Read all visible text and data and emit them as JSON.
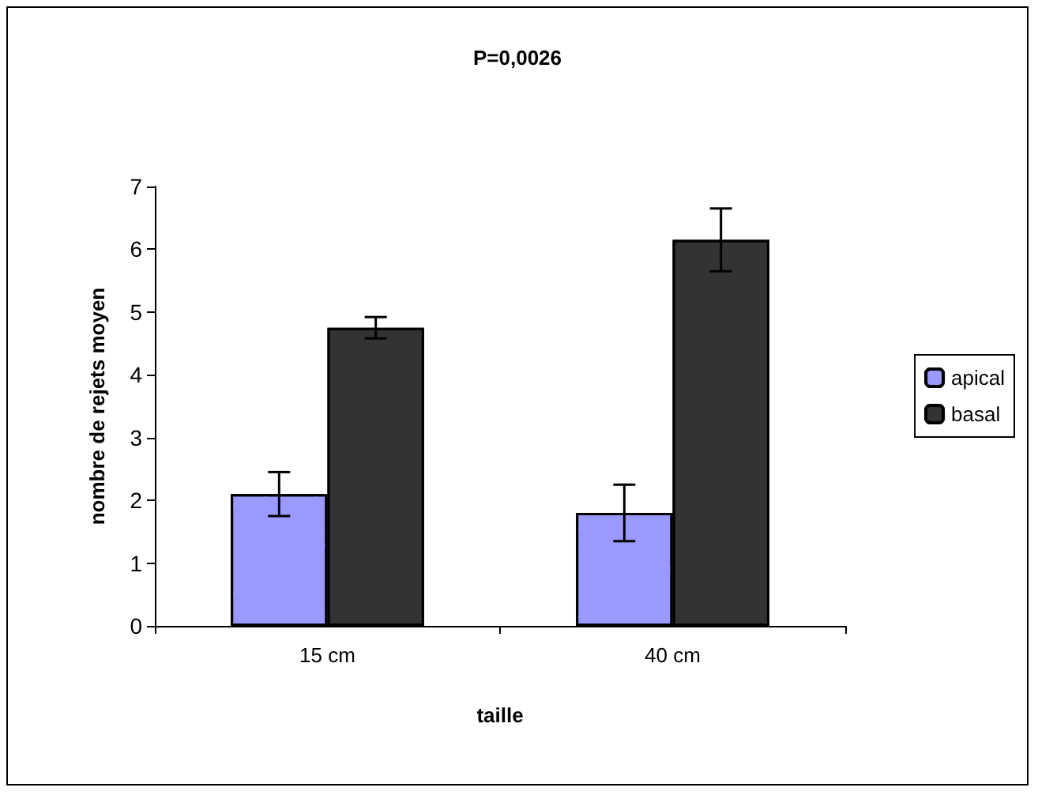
{
  "chart_data": {
    "type": "bar",
    "title": "P=0,0026",
    "xlabel": "taille",
    "ylabel": "nombre de rejets moyen",
    "categories": [
      "15 cm",
      "40 cm"
    ],
    "series": [
      {
        "name": "apical",
        "color": "#9999ff",
        "values": [
          2.1,
          1.8
        ],
        "errors": [
          0.35,
          0.45
        ]
      },
      {
        "name": "basal",
        "color": "#333333",
        "values": [
          4.75,
          6.15
        ],
        "errors": [
          0.17,
          0.5
        ]
      }
    ],
    "ylim": [
      0,
      7
    ],
    "yticks": [
      0,
      1,
      2,
      3,
      4,
      5,
      6,
      7
    ],
    "grid": false,
    "legend": "right"
  }
}
